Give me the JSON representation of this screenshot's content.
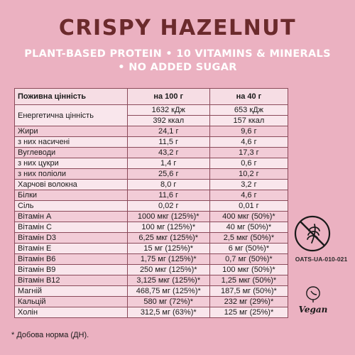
{
  "title": "CRISPY HAZELNUT",
  "subtitle_line1": "PLANT-BASED PROTEIN • 10 VITAMINS & MINERALS",
  "subtitle_line2": "• NO ADDED SUGAR",
  "table": {
    "headers": [
      "Поживна цінність",
      "на 100 г",
      "на 40 г"
    ],
    "energy_label": "Енергетична цінність",
    "energy_rows": [
      [
        "1632 кДж",
        "653 кДж"
      ],
      [
        "392 ккал",
        "157 ккал"
      ]
    ],
    "rows": [
      [
        "Жири",
        "24,1 г",
        "9,6 г"
      ],
      [
        "з них насичені",
        "11,5 г",
        "4,6 г"
      ],
      [
        "Вуглеводи",
        "43,2 г",
        "17,3 г"
      ],
      [
        "з них цукри",
        "1,4 г",
        "0,6 г"
      ],
      [
        "з них поліоли",
        "25,6 г",
        "10,2 г"
      ],
      [
        "Харчові волокна",
        "8,0 г",
        "3,2 г"
      ],
      [
        "Білки",
        "11,6 г",
        "4,6 г"
      ],
      [
        "Сіль",
        "0,02 г",
        "0,01 г"
      ],
      [
        "Вітамін А",
        "1000 мкг (125%)*",
        "400 мкг (50%)*"
      ],
      [
        "Вітамін С",
        "100 мг (125%)*",
        "40 мг (50%)*"
      ],
      [
        "Вітамін D3",
        "6,25 мкг (125%)*",
        "2,5 мкг (50%)*"
      ],
      [
        "Вітамін E",
        "15 мг (125%)*",
        "6 мг (50%)*"
      ],
      [
        "Вітамін В6",
        "1,75 мг (125%)*",
        "0,7 мг (50%)*"
      ],
      [
        "Вітамін В9",
        "250 мкг (125%)*",
        "100 мкг (50%)*"
      ],
      [
        "Вітамін В12",
        "3,125 мкг (125%)*",
        "1,25 мкг (50%)*"
      ],
      [
        "Магній",
        "468,75 мг (125%)*",
        "187,5 мг (50%)*"
      ],
      [
        "Кальцій",
        "580 мг (72%)*",
        "232 мг (29%)*"
      ],
      [
        "Холін",
        "312,5 мг (63%)*",
        "125 мг (25%)*"
      ]
    ]
  },
  "certification_code": "OATS-UA-010-021",
  "vegan_logo_text": "Vegan",
  "footnote": "* Добова норма (ДН).",
  "colors": {
    "background": "#ebb1c1",
    "title": "#6b2a2c",
    "subtitle": "#ffffff",
    "row_light": "#f9e6ec",
    "row_dark": "#f2ccd7"
  },
  "icons": [
    "gluten-free-icon",
    "vegan-logo"
  ]
}
